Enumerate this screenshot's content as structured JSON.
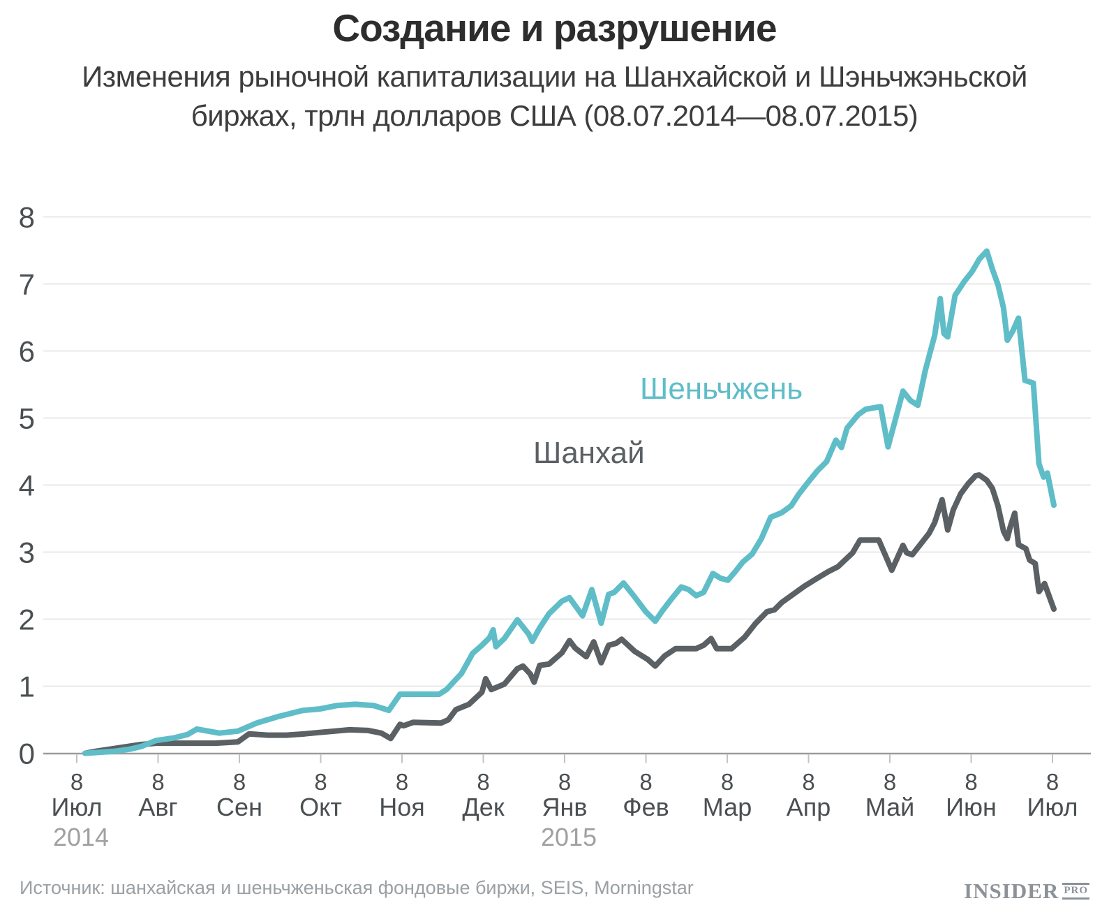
{
  "header": {
    "title": "Создание и разрушение",
    "subtitle_line1": "Изменения рыночной капитализации на Шанхайской и Шэньчжэньской",
    "subtitle_line2": "биржах, трлн долларов США (08.07.2014—08.07.2015)"
  },
  "footer": {
    "source": "Источник: шанхайская и шеньчженьская фондовые биржи, SEIS, Morningstar",
    "logo_main": "INSIDER",
    "logo_sub": "PRO"
  },
  "colors": {
    "shenzhen": "#5fbdc8",
    "shanghai": "#5a6063",
    "grid": "#e8e8e8",
    "axis": "#9b9b9b",
    "tick": "#c3c3c3",
    "axis_label": "#4a4f52",
    "year_label": "#a0a0a0"
  },
  "chart_data": {
    "type": "line",
    "title": "Создание и разрушение",
    "subtitle": "Изменения рыночной капитализации на Шанхайской и Шэньчжэньской биржах, трлн долларов США (08.07.2014—08.07.2015)",
    "y_unit": "трлн долларов США",
    "ylim": [
      0,
      8
    ],
    "y_ticks": [
      0,
      1,
      2,
      3,
      4,
      5,
      6,
      7,
      8
    ],
    "grid": true,
    "legend_position": "inline-labels",
    "x_unit": "weeks since 2014-07-08",
    "x_ticks": [
      {
        "day": "8",
        "month": "Июл",
        "year": "2014"
      },
      {
        "day": "8",
        "month": "Авг"
      },
      {
        "day": "8",
        "month": "Сен"
      },
      {
        "day": "8",
        "month": "Окт"
      },
      {
        "day": "8",
        "month": "Ноя"
      },
      {
        "day": "8",
        "month": "Дек"
      },
      {
        "day": "8",
        "month": "Янв",
        "year": "2015"
      },
      {
        "day": "8",
        "month": "Фев"
      },
      {
        "day": "8",
        "month": "Мар"
      },
      {
        "day": "8",
        "month": "Апр"
      },
      {
        "day": "8",
        "month": "Май"
      },
      {
        "day": "8",
        "month": "Июн"
      },
      {
        "day": "8",
        "month": "Июл"
      }
    ],
    "series": [
      {
        "key": "shenzhen",
        "name": "Шеньчжень",
        "color": "#5fbdc8",
        "points": [
          [
            0,
            0
          ],
          [
            0.6,
            0.01
          ],
          [
            1.6,
            0.03
          ],
          [
            2.4,
            0.06
          ],
          [
            3,
            0.1
          ],
          [
            3.8,
            0.19
          ],
          [
            4.8,
            0.23
          ],
          [
            5.5,
            0.28
          ],
          [
            6,
            0.36
          ],
          [
            7.2,
            0.3
          ],
          [
            8.2,
            0.33
          ],
          [
            9.2,
            0.45
          ],
          [
            10.4,
            0.55
          ],
          [
            11.7,
            0.64
          ],
          [
            12.6,
            0.66
          ],
          [
            13.5,
            0.71
          ],
          [
            14.5,
            0.73
          ],
          [
            15.5,
            0.71
          ],
          [
            16.3,
            0.64
          ],
          [
            16.9,
            0.88
          ],
          [
            19,
            0.88
          ],
          [
            19.4,
            0.95
          ],
          [
            19.8,
            1.07
          ],
          [
            20.2,
            1.19
          ],
          [
            20.5,
            1.34
          ],
          [
            20.8,
            1.49
          ],
          [
            21.3,
            1.61
          ],
          [
            21.7,
            1.72
          ],
          [
            21.9,
            1.84
          ],
          [
            22.05,
            1.59
          ],
          [
            22.5,
            1.71
          ],
          [
            23.2,
            1.99
          ],
          [
            23.8,
            1.78
          ],
          [
            24,
            1.67
          ],
          [
            24.4,
            1.87
          ],
          [
            24.9,
            2.08
          ],
          [
            25.6,
            2.27
          ],
          [
            26,
            2.32
          ],
          [
            26.7,
            2.05
          ],
          [
            27.2,
            2.44
          ],
          [
            27.7,
            1.94
          ],
          [
            28.1,
            2.37
          ],
          [
            28.4,
            2.4
          ],
          [
            28.9,
            2.54
          ],
          [
            29.5,
            2.33
          ],
          [
            30.1,
            2.11
          ],
          [
            30.6,
            1.97
          ],
          [
            31,
            2.13
          ],
          [
            31.5,
            2.31
          ],
          [
            32,
            2.48
          ],
          [
            32.4,
            2.44
          ],
          [
            32.8,
            2.35
          ],
          [
            33.2,
            2.4
          ],
          [
            33.7,
            2.68
          ],
          [
            34.1,
            2.61
          ],
          [
            34.5,
            2.58
          ],
          [
            34.9,
            2.71
          ],
          [
            35.3,
            2.85
          ],
          [
            35.8,
            2.97
          ],
          [
            36.3,
            3.2
          ],
          [
            36.8,
            3.52
          ],
          [
            37.4,
            3.59
          ],
          [
            37.9,
            3.69
          ],
          [
            38.3,
            3.86
          ],
          [
            38.8,
            4.04
          ],
          [
            39.3,
            4.21
          ],
          [
            39.8,
            4.35
          ],
          [
            40.3,
            4.67
          ],
          [
            40.6,
            4.56
          ],
          [
            40.9,
            4.85
          ],
          [
            41.5,
            5.05
          ],
          [
            41.9,
            5.13
          ],
          [
            42.7,
            5.17
          ],
          [
            43.1,
            4.57
          ],
          [
            43.9,
            5.4
          ],
          [
            44.3,
            5.26
          ],
          [
            44.7,
            5.19
          ],
          [
            45.1,
            5.71
          ],
          [
            45.6,
            6.23
          ],
          [
            45.9,
            6.78
          ],
          [
            46.1,
            6.26
          ],
          [
            46.3,
            6.21
          ],
          [
            46.7,
            6.83
          ],
          [
            47.2,
            7.04
          ],
          [
            47.6,
            7.18
          ],
          [
            48,
            7.37
          ],
          [
            48.4,
            7.49
          ],
          [
            48.7,
            7.22
          ],
          [
            49,
            6.99
          ],
          [
            49.3,
            6.64
          ],
          [
            49.5,
            6.16
          ],
          [
            49.8,
            6.3
          ],
          [
            50.1,
            6.49
          ],
          [
            50.45,
            5.56
          ],
          [
            50.9,
            5.52
          ],
          [
            51.2,
            4.32
          ],
          [
            51.45,
            4.12
          ],
          [
            51.65,
            4.18
          ],
          [
            52,
            3.7
          ]
        ]
      },
      {
        "key": "shanghai",
        "name": "Шанхай",
        "color": "#5a6063",
        "points": [
          [
            0,
            0
          ],
          [
            0.6,
            0.03
          ],
          [
            2,
            0.09
          ],
          [
            3,
            0.13
          ],
          [
            3.8,
            0.15
          ],
          [
            5,
            0.15
          ],
          [
            6,
            0.15
          ],
          [
            7,
            0.15
          ],
          [
            8.2,
            0.17
          ],
          [
            8.8,
            0.29
          ],
          [
            9.8,
            0.27
          ],
          [
            10.8,
            0.27
          ],
          [
            11.8,
            0.29
          ],
          [
            12.6,
            0.31
          ],
          [
            13.4,
            0.33
          ],
          [
            14.2,
            0.35
          ],
          [
            15.2,
            0.34
          ],
          [
            15.9,
            0.3
          ],
          [
            16.4,
            0.22
          ],
          [
            16.9,
            0.43
          ],
          [
            17.1,
            0.41
          ],
          [
            17.6,
            0.46
          ],
          [
            19.1,
            0.45
          ],
          [
            19.5,
            0.5
          ],
          [
            19.9,
            0.65
          ],
          [
            20.6,
            0.73
          ],
          [
            21.3,
            0.91
          ],
          [
            21.5,
            1.11
          ],
          [
            21.8,
            0.95
          ],
          [
            22.5,
            1.03
          ],
          [
            23.2,
            1.26
          ],
          [
            23.5,
            1.3
          ],
          [
            23.9,
            1.18
          ],
          [
            24.1,
            1.06
          ],
          [
            24.4,
            1.31
          ],
          [
            24.9,
            1.33
          ],
          [
            25.6,
            1.5
          ],
          [
            26,
            1.68
          ],
          [
            26.3,
            1.57
          ],
          [
            26.9,
            1.44
          ],
          [
            27.3,
            1.66
          ],
          [
            27.7,
            1.35
          ],
          [
            28.1,
            1.61
          ],
          [
            28.5,
            1.64
          ],
          [
            28.8,
            1.7
          ],
          [
            29.5,
            1.52
          ],
          [
            30.2,
            1.4
          ],
          [
            30.6,
            1.3
          ],
          [
            31.1,
            1.45
          ],
          [
            31.7,
            1.56
          ],
          [
            32.8,
            1.56
          ],
          [
            33.2,
            1.61
          ],
          [
            33.6,
            1.71
          ],
          [
            33.9,
            1.56
          ],
          [
            34.7,
            1.56
          ],
          [
            35.4,
            1.73
          ],
          [
            36,
            1.94
          ],
          [
            36.6,
            2.11
          ],
          [
            37,
            2.14
          ],
          [
            37.4,
            2.25
          ],
          [
            38,
            2.37
          ],
          [
            38.6,
            2.49
          ],
          [
            39.3,
            2.61
          ],
          [
            39.9,
            2.71
          ],
          [
            40.4,
            2.78
          ],
          [
            41.2,
            2.99
          ],
          [
            41.6,
            3.18
          ],
          [
            42.6,
            3.18
          ],
          [
            43.3,
            2.73
          ],
          [
            43.9,
            3.1
          ],
          [
            44.1,
            2.99
          ],
          [
            44.4,
            2.96
          ],
          [
            45.3,
            3.28
          ],
          [
            45.6,
            3.44
          ],
          [
            46,
            3.78
          ],
          [
            46.3,
            3.33
          ],
          [
            46.6,
            3.63
          ],
          [
            47,
            3.87
          ],
          [
            47.4,
            4.02
          ],
          [
            47.8,
            4.14
          ],
          [
            48,
            4.15
          ],
          [
            48.4,
            4.07
          ],
          [
            48.7,
            3.95
          ],
          [
            49,
            3.69
          ],
          [
            49.3,
            3.31
          ],
          [
            49.5,
            3.2
          ],
          [
            49.65,
            3.37
          ],
          [
            49.9,
            3.58
          ],
          [
            50.1,
            3.11
          ],
          [
            50.5,
            3.05
          ],
          [
            50.7,
            2.88
          ],
          [
            51,
            2.83
          ],
          [
            51.2,
            2.41
          ],
          [
            51.5,
            2.53
          ],
          [
            52,
            2.15
          ]
        ]
      }
    ]
  }
}
